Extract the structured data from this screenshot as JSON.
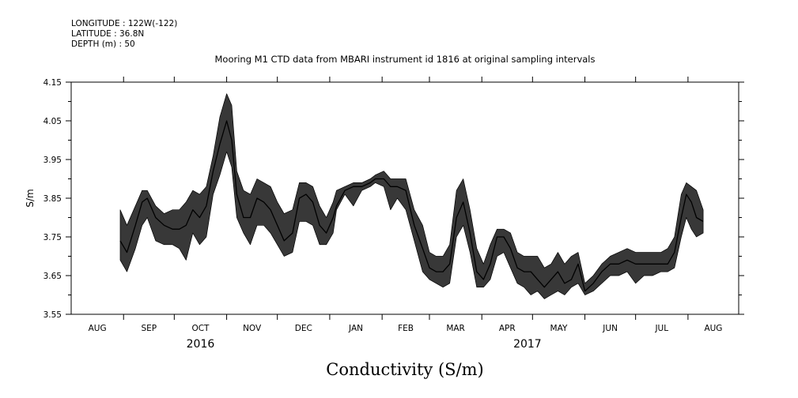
{
  "header": {
    "longitude": "LONGITUDE : 122W(-122)",
    "latitude": "LATITUDE : 36.8N",
    "depth": "DEPTH (m) : 50"
  },
  "chart_data": {
    "type": "line",
    "title": "Mooring M1 CTD data from MBARI instrument id 1816 at original sampling intervals",
    "xlabel": "Conductivity (S/m)",
    "ylabel": "S/m",
    "ylim": [
      3.55,
      4.15
    ],
    "yticks": [
      3.55,
      3.65,
      3.75,
      3.85,
      3.95,
      4.05,
      4.15
    ],
    "ytick_labels": [
      "3.55",
      "3.65",
      "3.75",
      "3.85",
      "3.95",
      "4.05",
      "4.15"
    ],
    "xlim": [
      "2016-08-01",
      "2017-08-31"
    ],
    "x_months": [
      "AUG",
      "SEP",
      "OCT",
      "NOV",
      "DEC",
      "JAN",
      "FEB",
      "MAR",
      "APR",
      "MAY",
      "JUN",
      "JUL",
      "AUG"
    ],
    "x_years": [
      {
        "label": "2016",
        "center_month_index": 2.5
      },
      {
        "label": "2017",
        "center_month_index": 8.9
      }
    ],
    "grid": false,
    "legend": "none",
    "line_color": "#000000",
    "series": [
      {
        "x": [
          "2016-08-30",
          "2016-09-03",
          "2016-09-08",
          "2016-09-12",
          "2016-09-15",
          "2016-09-20",
          "2016-09-25",
          "2016-09-30",
          "2016-10-04",
          "2016-10-08",
          "2016-10-12",
          "2016-10-16",
          "2016-10-20",
          "2016-10-24",
          "2016-10-28",
          "2016-11-01",
          "2016-11-04",
          "2016-11-07",
          "2016-11-11",
          "2016-11-15",
          "2016-11-19",
          "2016-11-23",
          "2016-11-27",
          "2016-12-01",
          "2016-12-05",
          "2016-12-10",
          "2016-12-14",
          "2016-12-18",
          "2016-12-22",
          "2016-12-26",
          "2016-12-30",
          "2017-01-03",
          "2017-01-05",
          "2017-01-10",
          "2017-01-15",
          "2017-01-20",
          "2017-01-25",
          "2017-01-28",
          "2017-02-02",
          "2017-02-06",
          "2017-02-10",
          "2017-02-15",
          "2017-02-20",
          "2017-02-25",
          "2017-03-01",
          "2017-03-05",
          "2017-03-09",
          "2017-03-13",
          "2017-03-17",
          "2017-03-21",
          "2017-03-25",
          "2017-03-29",
          "2017-04-02",
          "2017-04-06",
          "2017-04-10",
          "2017-04-14",
          "2017-04-18",
          "2017-04-22",
          "2017-04-26",
          "2017-04-30",
          "2017-05-04",
          "2017-05-08",
          "2017-05-12",
          "2017-05-16",
          "2017-05-20",
          "2017-05-24",
          "2017-05-28",
          "2017-06-01",
          "2017-06-06",
          "2017-06-11",
          "2017-06-16",
          "2017-06-21",
          "2017-06-26",
          "2017-07-01",
          "2017-07-06",
          "2017-07-11",
          "2017-07-16",
          "2017-07-20",
          "2017-07-24",
          "2017-07-28",
          "2017-07-31",
          "2017-08-03",
          "2017-08-06",
          "2017-08-10"
        ],
        "y": [
          3.74,
          3.71,
          3.78,
          3.84,
          3.85,
          3.8,
          3.78,
          3.77,
          3.77,
          3.78,
          3.82,
          3.8,
          3.83,
          3.92,
          3.99,
          4.05,
          4.0,
          3.86,
          3.8,
          3.8,
          3.85,
          3.84,
          3.82,
          3.78,
          3.74,
          3.76,
          3.85,
          3.86,
          3.84,
          3.78,
          3.76,
          3.8,
          3.83,
          3.87,
          3.88,
          3.88,
          3.89,
          3.9,
          3.9,
          3.88,
          3.88,
          3.87,
          3.78,
          3.72,
          3.67,
          3.66,
          3.66,
          3.68,
          3.8,
          3.84,
          3.76,
          3.66,
          3.64,
          3.68,
          3.75,
          3.75,
          3.72,
          3.67,
          3.66,
          3.66,
          3.64,
          3.62,
          3.64,
          3.66,
          3.63,
          3.64,
          3.68,
          3.61,
          3.63,
          3.66,
          3.68,
          3.68,
          3.69,
          3.68,
          3.68,
          3.68,
          3.68,
          3.68,
          3.71,
          3.8,
          3.86,
          3.84,
          3.8,
          3.79
        ],
        "range_low": [
          3.69,
          3.66,
          3.72,
          3.78,
          3.8,
          3.74,
          3.73,
          3.73,
          3.72,
          3.69,
          3.76,
          3.73,
          3.75,
          3.86,
          3.91,
          3.97,
          3.93,
          3.8,
          3.76,
          3.73,
          3.78,
          3.78,
          3.76,
          3.73,
          3.7,
          3.71,
          3.79,
          3.79,
          3.78,
          3.73,
          3.73,
          3.76,
          3.82,
          3.86,
          3.83,
          3.87,
          3.88,
          3.89,
          3.88,
          3.82,
          3.85,
          3.82,
          3.74,
          3.66,
          3.64,
          3.63,
          3.62,
          3.63,
          3.75,
          3.78,
          3.71,
          3.62,
          3.62,
          3.64,
          3.7,
          3.71,
          3.67,
          3.63,
          3.62,
          3.6,
          3.61,
          3.59,
          3.6,
          3.61,
          3.6,
          3.62,
          3.63,
          3.6,
          3.61,
          3.63,
          3.65,
          3.65,
          3.66,
          3.63,
          3.65,
          3.65,
          3.66,
          3.66,
          3.67,
          3.75,
          3.8,
          3.77,
          3.75,
          3.76
        ],
        "range_high": [
          3.82,
          3.78,
          3.83,
          3.87,
          3.87,
          3.83,
          3.81,
          3.82,
          3.82,
          3.84,
          3.87,
          3.86,
          3.88,
          3.96,
          4.06,
          4.12,
          4.09,
          3.92,
          3.87,
          3.86,
          3.9,
          3.89,
          3.88,
          3.84,
          3.81,
          3.82,
          3.89,
          3.89,
          3.88,
          3.83,
          3.8,
          3.84,
          3.87,
          3.88,
          3.89,
          3.89,
          3.9,
          3.91,
          3.92,
          3.9,
          3.9,
          3.9,
          3.82,
          3.78,
          3.71,
          3.7,
          3.7,
          3.73,
          3.87,
          3.9,
          3.82,
          3.72,
          3.68,
          3.73,
          3.77,
          3.77,
          3.76,
          3.71,
          3.7,
          3.7,
          3.7,
          3.67,
          3.68,
          3.71,
          3.68,
          3.7,
          3.71,
          3.63,
          3.65,
          3.68,
          3.7,
          3.71,
          3.72,
          3.71,
          3.71,
          3.71,
          3.71,
          3.72,
          3.75,
          3.86,
          3.89,
          3.88,
          3.87,
          3.82
        ]
      }
    ]
  }
}
